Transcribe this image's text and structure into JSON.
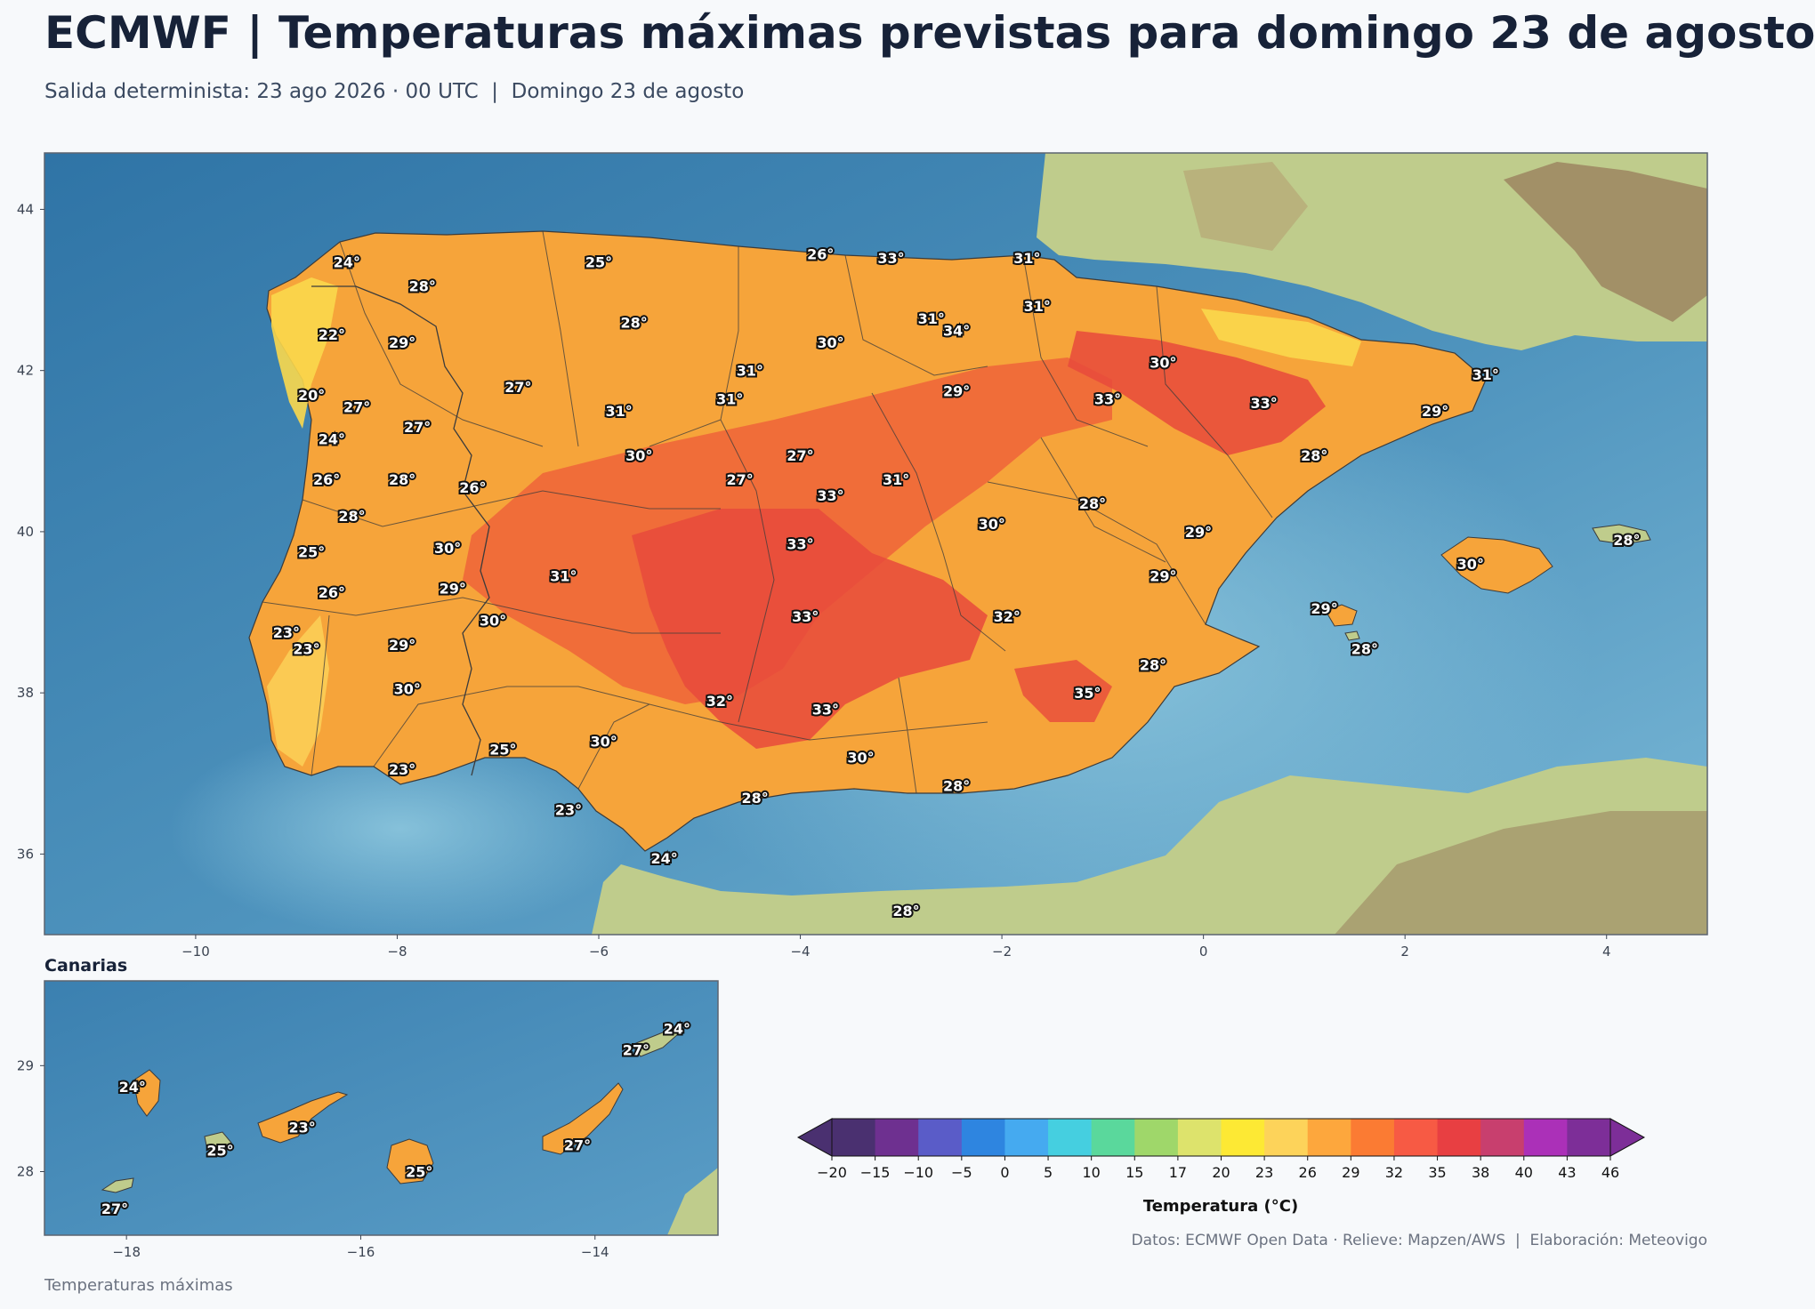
{
  "title": "ECMWF | Temperaturas máximas previstas para domingo 23 de agosto",
  "subtitle": "Salida determinista: 23 ago 2026 · 00 UTC  |  Domingo 23 de agosto",
  "colors": {
    "sea_dark": "#2f74a6",
    "sea_light": "#7ab8d6",
    "land": "#bfcc8c",
    "mountain": "#9c8560",
    "border": "#3b3b3b"
  },
  "main_map": {
    "lon_range": [
      -11.5,
      5.0
    ],
    "lat_range": [
      35.0,
      44.7
    ],
    "x_ticks": [
      -10,
      -8,
      -6,
      -4,
      -2,
      0,
      2,
      4
    ],
    "y_ticks": [
      36,
      38,
      40,
      42,
      44
    ],
    "labels": [
      {
        "lon": -8.5,
        "lat": 43.35,
        "text": "24°"
      },
      {
        "lon": -7.75,
        "lat": 43.05,
        "text": "28°"
      },
      {
        "lon": -6.0,
        "lat": 43.35,
        "text": "25°"
      },
      {
        "lon": -3.8,
        "lat": 43.45,
        "text": "26°"
      },
      {
        "lon": -3.1,
        "lat": 43.4,
        "text": "33°"
      },
      {
        "lon": -1.75,
        "lat": 43.4,
        "text": "31°"
      },
      {
        "lon": -8.65,
        "lat": 42.45,
        "text": "22°"
      },
      {
        "lon": -7.95,
        "lat": 42.35,
        "text": "29°"
      },
      {
        "lon": -5.65,
        "lat": 42.6,
        "text": "28°"
      },
      {
        "lon": -3.7,
        "lat": 42.35,
        "text": "30°"
      },
      {
        "lon": -2.7,
        "lat": 42.65,
        "text": "31°"
      },
      {
        "lon": -2.45,
        "lat": 42.5,
        "text": "34°"
      },
      {
        "lon": -1.65,
        "lat": 42.8,
        "text": "31°"
      },
      {
        "lon": -0.4,
        "lat": 42.1,
        "text": "30°"
      },
      {
        "lon": 2.8,
        "lat": 41.95,
        "text": "31°"
      },
      {
        "lon": -4.5,
        "lat": 42.0,
        "text": "31°"
      },
      {
        "lon": -6.8,
        "lat": 41.8,
        "text": "27°"
      },
      {
        "lon": -8.85,
        "lat": 41.7,
        "text": "20°"
      },
      {
        "lon": -8.4,
        "lat": 41.55,
        "text": "27°"
      },
      {
        "lon": -7.8,
        "lat": 41.3,
        "text": "27°"
      },
      {
        "lon": -5.8,
        "lat": 41.5,
        "text": "31°"
      },
      {
        "lon": -4.7,
        "lat": 41.65,
        "text": "31°"
      },
      {
        "lon": -2.45,
        "lat": 41.75,
        "text": "29°"
      },
      {
        "lon": -0.95,
        "lat": 41.65,
        "text": "33°"
      },
      {
        "lon": 0.6,
        "lat": 41.6,
        "text": "33°"
      },
      {
        "lon": 2.3,
        "lat": 41.5,
        "text": "29°"
      },
      {
        "lon": -8.65,
        "lat": 41.15,
        "text": "24°"
      },
      {
        "lon": -5.6,
        "lat": 40.95,
        "text": "30°"
      },
      {
        "lon": -4.0,
        "lat": 40.95,
        "text": "27°"
      },
      {
        "lon": 1.1,
        "lat": 40.95,
        "text": "28°"
      },
      {
        "lon": -8.7,
        "lat": 40.65,
        "text": "26°"
      },
      {
        "lon": -7.95,
        "lat": 40.65,
        "text": "28°"
      },
      {
        "lon": -7.25,
        "lat": 40.55,
        "text": "26°"
      },
      {
        "lon": -4.6,
        "lat": 40.65,
        "text": "27°"
      },
      {
        "lon": -3.05,
        "lat": 40.65,
        "text": "31°"
      },
      {
        "lon": -3.7,
        "lat": 40.45,
        "text": "33°"
      },
      {
        "lon": -1.1,
        "lat": 40.35,
        "text": "28°"
      },
      {
        "lon": -8.45,
        "lat": 40.2,
        "text": "28°"
      },
      {
        "lon": -2.1,
        "lat": 40.1,
        "text": "30°"
      },
      {
        "lon": -0.05,
        "lat": 40.0,
        "text": "29°"
      },
      {
        "lon": -4.0,
        "lat": 39.85,
        "text": "33°"
      },
      {
        "lon": 4.2,
        "lat": 39.9,
        "text": "28°"
      },
      {
        "lon": -7.5,
        "lat": 39.8,
        "text": "30°"
      },
      {
        "lon": -8.85,
        "lat": 39.75,
        "text": "25°"
      },
      {
        "lon": 2.65,
        "lat": 39.6,
        "text": "30°"
      },
      {
        "lon": -6.35,
        "lat": 39.45,
        "text": "31°"
      },
      {
        "lon": -0.4,
        "lat": 39.45,
        "text": "29°"
      },
      {
        "lon": -7.45,
        "lat": 39.3,
        "text": "29°"
      },
      {
        "lon": -8.65,
        "lat": 39.25,
        "text": "26°"
      },
      {
        "lon": 1.2,
        "lat": 39.05,
        "text": "29°"
      },
      {
        "lon": -3.95,
        "lat": 38.95,
        "text": "33°"
      },
      {
        "lon": -1.95,
        "lat": 38.95,
        "text": "32°"
      },
      {
        "lon": -7.05,
        "lat": 38.9,
        "text": "30°"
      },
      {
        "lon": -9.1,
        "lat": 38.75,
        "text": "23°"
      },
      {
        "lon": -8.9,
        "lat": 38.55,
        "text": "23°"
      },
      {
        "lon": -7.95,
        "lat": 38.6,
        "text": "29°"
      },
      {
        "lon": 1.6,
        "lat": 38.55,
        "text": "28°"
      },
      {
        "lon": -0.5,
        "lat": 38.35,
        "text": "28°"
      },
      {
        "lon": -7.9,
        "lat": 38.05,
        "text": "30°"
      },
      {
        "lon": -1.15,
        "lat": 38.0,
        "text": "35°"
      },
      {
        "lon": -4.8,
        "lat": 37.9,
        "text": "32°"
      },
      {
        "lon": -3.75,
        "lat": 37.8,
        "text": "33°"
      },
      {
        "lon": -5.95,
        "lat": 37.4,
        "text": "30°"
      },
      {
        "lon": -6.95,
        "lat": 37.3,
        "text": "25°"
      },
      {
        "lon": -3.4,
        "lat": 37.2,
        "text": "30°"
      },
      {
        "lon": -7.95,
        "lat": 37.05,
        "text": "23°"
      },
      {
        "lon": -4.45,
        "lat": 36.7,
        "text": "28°"
      },
      {
        "lon": -2.45,
        "lat": 36.85,
        "text": "28°"
      },
      {
        "lon": -6.3,
        "lat": 36.55,
        "text": "23°"
      },
      {
        "lon": -5.35,
        "lat": 35.95,
        "text": "24°"
      },
      {
        "lon": -2.95,
        "lat": 35.3,
        "text": "28°"
      }
    ]
  },
  "canary": {
    "title": "Canarias",
    "lon_range": [
      -18.7,
      -12.95
    ],
    "lat_range": [
      27.4,
      29.8
    ],
    "x_ticks": [
      -18,
      -16,
      -14
    ],
    "y_ticks": [
      28,
      29
    ],
    "labels": [
      {
        "lon": -13.3,
        "lat": 29.35,
        "text": "24°"
      },
      {
        "lon": -13.65,
        "lat": 29.15,
        "text": "27°"
      },
      {
        "lon": -17.95,
        "lat": 28.8,
        "text": "24°"
      },
      {
        "lon": -16.5,
        "lat": 28.42,
        "text": "23°"
      },
      {
        "lon": -17.2,
        "lat": 28.2,
        "text": "25°"
      },
      {
        "lon": -14.15,
        "lat": 28.25,
        "text": "27°"
      },
      {
        "lon": -15.5,
        "lat": 28.0,
        "text": "25°"
      },
      {
        "lon": -18.1,
        "lat": 27.65,
        "text": "27°"
      }
    ]
  },
  "colorbar": {
    "label": "Temperatura (°C)",
    "ticks": [
      "−20",
      "−15",
      "−10",
      "−5",
      "0",
      "5",
      "10",
      "15",
      "17",
      "20",
      "23",
      "26",
      "29",
      "32",
      "35",
      "38",
      "40",
      "43",
      "46"
    ],
    "colors": [
      "#4a3070",
      "#6e3090",
      "#5a5cc8",
      "#2e85e0",
      "#45aaf0",
      "#45cfe0",
      "#5ad89c",
      "#9fd76a",
      "#dde36c",
      "#fde934",
      "#fdd35a",
      "#fda73d",
      "#fb7b33",
      "#f75a44",
      "#e83f42",
      "#c83f6e",
      "#ab30b8",
      "#7d2e98"
    ],
    "under_color": "#4a3070",
    "over_color": "#7d2e98"
  },
  "credits": "Datos: ECMWF Open Data · Relieve: Mapzen/AWS  |  Elaboración: Meteovigo",
  "footer": "Temperaturas máximas"
}
